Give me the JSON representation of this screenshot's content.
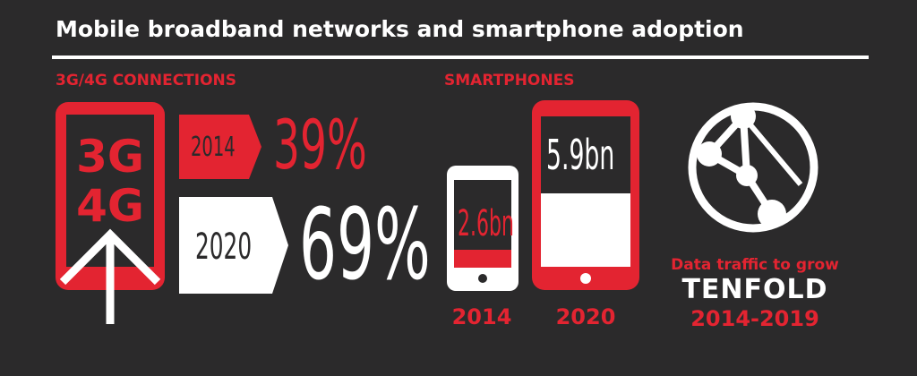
{
  "header": {
    "title": "Mobile broadband networks and smartphone adoption"
  },
  "connections": {
    "heading": "3G/4G CONNECTIONS",
    "phone_line1": "3G",
    "phone_line2": "4G",
    "rows": [
      {
        "year": "2014",
        "value": "39%"
      },
      {
        "year": "2020",
        "value": "69%"
      }
    ]
  },
  "smartphones": {
    "heading": "SMARTPHONES",
    "small_phone": {
      "value": "2.6bn",
      "year": "2014"
    },
    "large_phone": {
      "value": "5.9bn",
      "year": "2020"
    }
  },
  "traffic": {
    "line1": "Data traffic to grow",
    "line2": "TENFOLD",
    "line3": "2014-2019"
  },
  "colors": {
    "accent": "#e32431",
    "background": "#2b2a2b",
    "text": "#ffffff"
  },
  "icons": [
    "globe-network-icon",
    "up-arrow-icon"
  ]
}
